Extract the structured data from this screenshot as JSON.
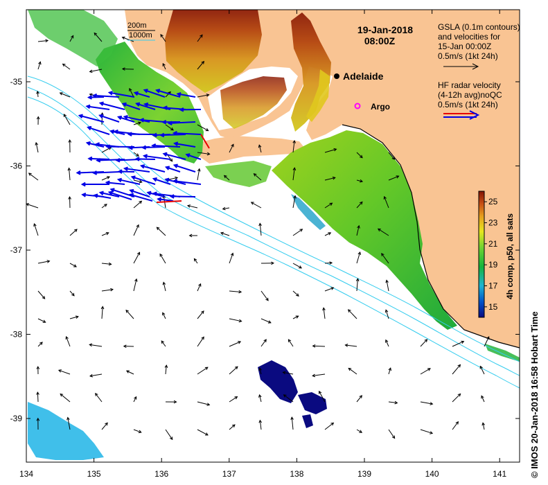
{
  "title": {
    "date": "19-Jan-2018",
    "time": "08:00Z"
  },
  "depth_legend": {
    "line1": "200m",
    "line2": "1000m"
  },
  "gsla_legend": {
    "line1": "GSLA (0.1m contours)",
    "line2": "and velocities for",
    "line3": "15-Jan 00:00Z",
    "line4": "0.5m/s (1kt 24h)"
  },
  "hf_legend": {
    "line1": "HF radar velocity",
    "line2": "(4-12h avg)noQC",
    "line3": "0.5m/s (1kt 24h)"
  },
  "places": {
    "adelaide": "Adelaide",
    "argo": "Argo"
  },
  "colorbar": {
    "title": "4h comp, p50, all sats",
    "ticks": [
      "25",
      "23",
      "21",
      "19",
      "17",
      "15"
    ],
    "range": [
      14,
      26
    ]
  },
  "axes": {
    "x_ticks": [
      "134",
      "135",
      "136",
      "137",
      "138",
      "139",
      "140",
      "141"
    ],
    "y_ticks": [
      "-35",
      "-36",
      "-37",
      "-38",
      "-39"
    ]
  },
  "credit": "© IMOS 20-Jan-2018 16:58 Hobart Time",
  "colors": {
    "land": "#f9c493",
    "hf_arrow": "#0000e6",
    "hf_arrow_red": "#e60000",
    "depth_contour": "#33ccee",
    "argo": "#ff00ff"
  }
}
